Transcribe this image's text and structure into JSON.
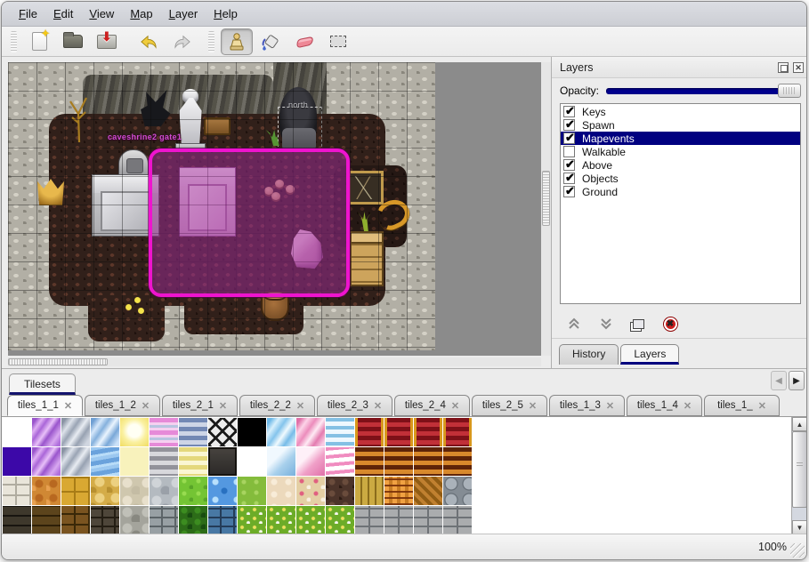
{
  "menu": {
    "items": [
      {
        "label": "File"
      },
      {
        "label": "Edit"
      },
      {
        "label": "View"
      },
      {
        "label": "Map"
      },
      {
        "label": "Layer"
      },
      {
        "label": "Help"
      }
    ]
  },
  "toolbar": {
    "tools": [
      "new-file",
      "open",
      "save",
      "undo",
      "redo",
      "stamp",
      "fill",
      "eraser",
      "rect-select"
    ],
    "active_tool": "stamp"
  },
  "map": {
    "gate_label": "caveshrine2 gate1",
    "north_label": "north",
    "selection_color": "#ee14ce",
    "zoom": "100%"
  },
  "layers_panel": {
    "title": "Layers",
    "opacity_label": "Opacity:",
    "opacity_percent": 100,
    "items": [
      {
        "label": "Keys",
        "checked": true,
        "selected": false
      },
      {
        "label": "Spawn",
        "checked": true,
        "selected": false
      },
      {
        "label": "Mapevents",
        "checked": true,
        "selected": true
      },
      {
        "label": "Walkable",
        "checked": false,
        "selected": false
      },
      {
        "label": "Above",
        "checked": true,
        "selected": false
      },
      {
        "label": "Objects",
        "checked": true,
        "selected": false
      },
      {
        "label": "Ground",
        "checked": true,
        "selected": false
      }
    ],
    "selected_color": "#000080",
    "buttons": [
      "move-layer-up",
      "move-layer-down",
      "duplicate-layer",
      "delete-layer"
    ],
    "tabs": [
      {
        "label": "History",
        "active": false
      },
      {
        "label": "Layers",
        "active": true
      }
    ]
  },
  "tilesets_panel": {
    "title": "Tilesets",
    "tabs": [
      {
        "label": "tiles_1_1",
        "active": true
      },
      {
        "label": "tiles_1_2",
        "active": false
      },
      {
        "label": "tiles_2_1",
        "active": false
      },
      {
        "label": "tiles_2_2",
        "active": false
      },
      {
        "label": "tiles_2_3",
        "active": false
      },
      {
        "label": "tiles_2_4",
        "active": false
      },
      {
        "label": "tiles_2_5",
        "active": false
      },
      {
        "label": "tiles_1_3",
        "active": false
      },
      {
        "label": "tiles_1_4",
        "active": false
      },
      {
        "label": "tiles_1_",
        "active": false
      }
    ],
    "tiles": [
      [
        "white",
        "crystal-purple",
        "crystal-gray",
        "crystal-blue",
        "glow-yellow",
        "stripe-pink",
        "stripe-blue",
        "lattice",
        "black",
        "crystal-iceblue",
        "crystal-pink",
        "stripe-ice",
        "carpet-red",
        "carpet-red",
        "carpet-red",
        "carpet-red"
      ],
      [
        "indigo",
        "crystal-purple",
        "crystal-gray",
        "water-blue",
        "pale-yellow",
        "stripe-gray",
        "stripe-yellow",
        "sign-dark",
        "white",
        "tile-blue",
        "tile-pink",
        "stripe-pinkrip",
        "stripe-brown",
        "stripe-brown",
        "stripe-brown",
        "stripe-brown"
      ],
      [
        "stone-blocks",
        "stone-orange",
        "tile-yellow",
        "stone-cracked",
        "cobble-pale",
        "cobble-gray",
        "grass-bright",
        "water-sparkle",
        "grass-mid",
        "sand-pale",
        "ground-flowers",
        "rock-dark",
        "planks-v",
        "weave",
        "herringbone",
        "stone-round"
      ],
      [
        "wall-dark",
        "wall-brown",
        "blocks-brown",
        "bricks-dark",
        "wall-cobble",
        "wall-graybrick",
        "hedge",
        "bricks-blue",
        "grass-flowers",
        "grass-flowers",
        "grass-flowers",
        "grass-flowers",
        "wall-stone-gray",
        "wall-stone-gray",
        "wall-stone-gray",
        "wall-stone-gray"
      ]
    ]
  },
  "status_bar": {
    "zoom": "100%"
  }
}
